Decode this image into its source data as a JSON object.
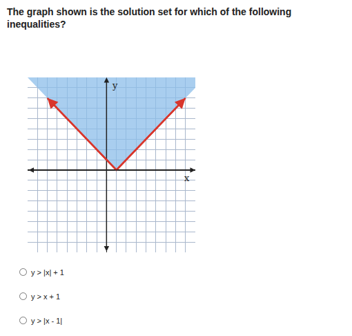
{
  "question": "The graph shown is the solution set for which of the following inequalities?",
  "chart_data": {
    "type": "inequality_graph",
    "xlabel": "x",
    "ylabel": "y",
    "xlim": [
      -8,
      9
    ],
    "ylim": [
      -8,
      9
    ],
    "xticks": [
      -8,
      -7,
      -6,
      -5,
      -4,
      -3,
      -2,
      -1,
      0,
      1,
      2,
      3,
      4,
      5,
      6,
      7,
      8,
      9
    ],
    "yticks": [
      -8,
      -7,
      -6,
      -5,
      -4,
      -3,
      -2,
      -1,
      0,
      1,
      2,
      3,
      4,
      5,
      6,
      7,
      8,
      9
    ],
    "grid": true,
    "tick_labels": false,
    "boundary": {
      "x": [
        -6,
        1,
        8
      ],
      "y": [
        7,
        0,
        7
      ],
      "color": "#d8362c"
    },
    "shaded_region": {
      "x": [
        -8,
        1,
        9,
        9,
        -8
      ],
      "y": [
        9,
        0,
        8,
        9,
        9
      ],
      "color": "#8cbde9"
    }
  },
  "options": [
    "y > |x| + 1",
    "y > x + 1",
    "y > |x - 1|"
  ]
}
